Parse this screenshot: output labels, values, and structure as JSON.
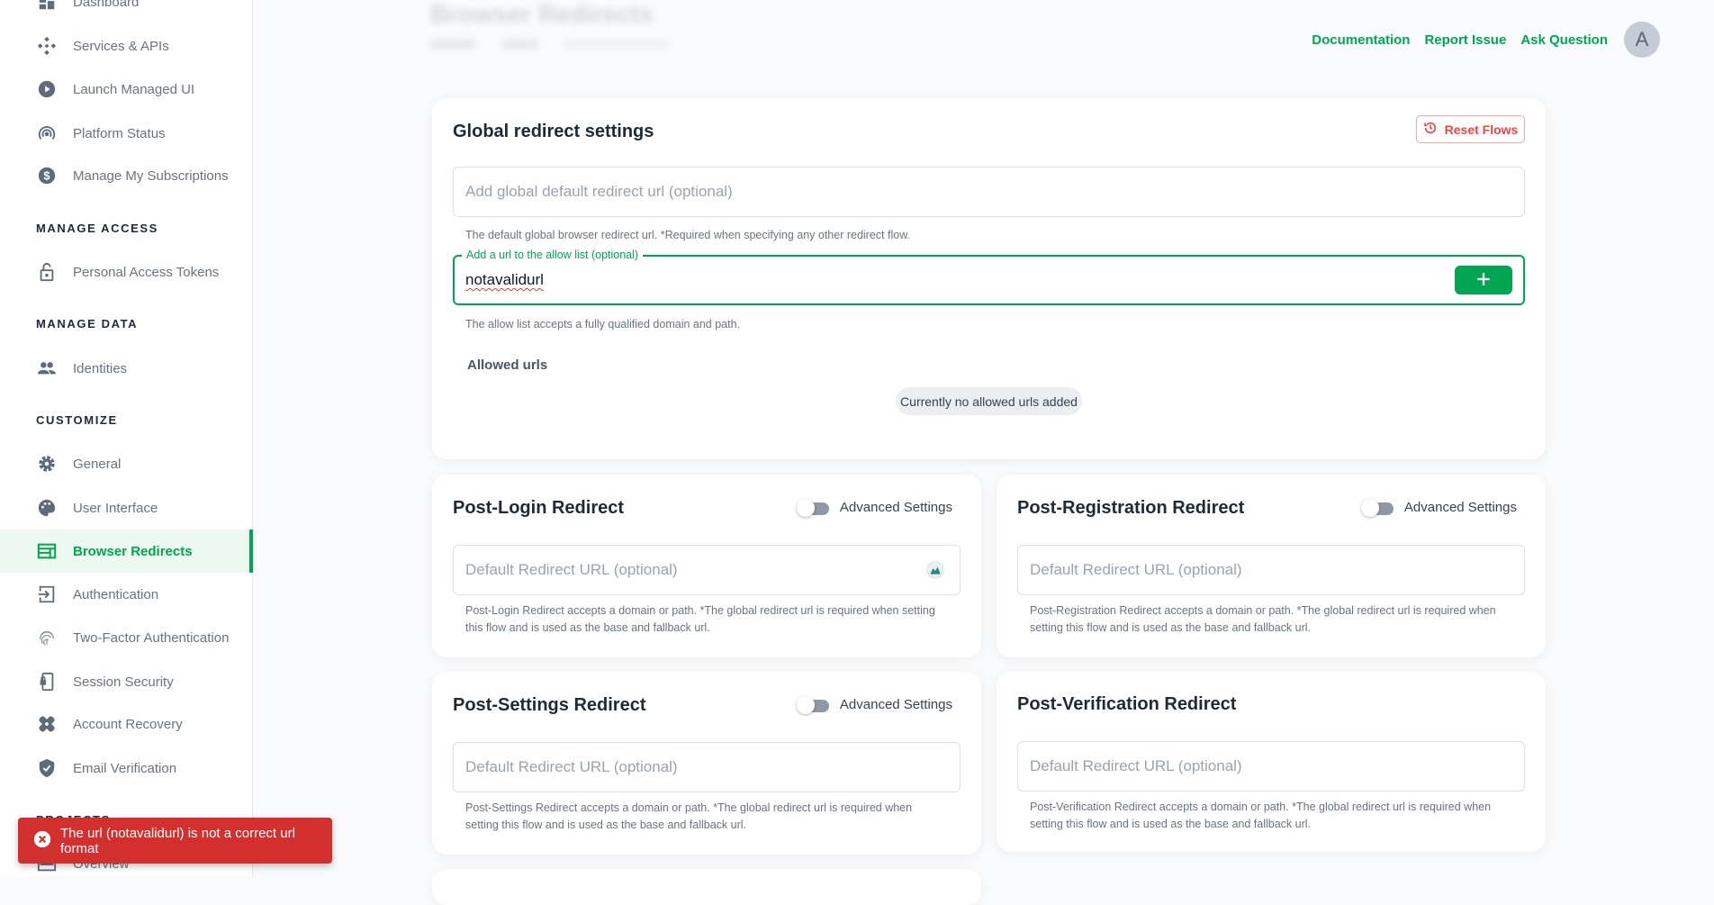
{
  "sidebar": {
    "items_top": [
      {
        "label": "Dashboard",
        "icon": "dashboard-icon"
      },
      {
        "label": "Services & APIs",
        "icon": "services-icon"
      },
      {
        "label": "Launch Managed UI",
        "icon": "play-circle-icon"
      },
      {
        "label": "Platform Status",
        "icon": "broadcast-icon"
      },
      {
        "label": "Manage My Subscriptions",
        "icon": "dollar-circle-icon"
      }
    ],
    "sections": [
      "MANAGE ACCESS",
      "MANAGE DATA",
      "CUSTOMIZE",
      "PROJECTS"
    ],
    "access_items": [
      {
        "label": "Personal Access Tokens",
        "icon": "lock-icon"
      }
    ],
    "data_items": [
      {
        "label": "Identities",
        "icon": "people-icon"
      }
    ],
    "customize_items": [
      {
        "label": "General",
        "icon": "gear-icon"
      },
      {
        "label": "User Interface",
        "icon": "palette-icon"
      },
      {
        "label": "Browser Redirects",
        "icon": "browser-icon",
        "active": true
      },
      {
        "label": "Authentication",
        "icon": "login-icon"
      },
      {
        "label": "Two-Factor Authentication",
        "icon": "fingerprint-icon"
      },
      {
        "label": "Session Security",
        "icon": "phone-lock-icon"
      },
      {
        "label": "Account Recovery",
        "icon": "bandage-icon"
      },
      {
        "label": "Email Verification",
        "icon": "shield-check-icon"
      }
    ],
    "project_items": [
      {
        "label": "Overview",
        "icon": "overview-icon"
      }
    ]
  },
  "header": {
    "title": "Browser Redirects",
    "links": [
      "Documentation",
      "Report Issue",
      "Ask Question"
    ],
    "avatar": "A",
    "accent": "#00a651"
  },
  "global": {
    "title": "Global redirect settings",
    "reset_label": "Reset Flows",
    "default_placeholder": "Add global default redirect url (optional)",
    "default_help": "The default global browser redirect url. *Required when specifying any other redirect flow.",
    "allow_label": "Add a url to the allow list (optional)",
    "allow_value": "notavalidurl",
    "allow_help": "The allow list accepts a fully qualified domain and path.",
    "allowed_title": "Allowed urls",
    "empty_chip": "Currently no allowed urls added"
  },
  "flows": [
    {
      "title": "Post-Login Redirect",
      "toggle": "Advanced Settings",
      "advanced_on": false,
      "placeholder": "Default Redirect URL (optional)",
      "help": "Post-Login Redirect accepts a domain or path. *The global redirect url is required when setting this flow and is used as the base and fallback url."
    },
    {
      "title": "Post-Registration Redirect",
      "toggle": "Advanced Settings",
      "advanced_on": false,
      "placeholder": "Default Redirect URL (optional)",
      "help": "Post-Registration Redirect accepts a domain or path. *The global redirect url is required when setting this flow and is used as the base and fallback url."
    },
    {
      "title": "Post-Settings Redirect",
      "toggle": "Advanced Settings",
      "advanced_on": false,
      "placeholder": "Default Redirect URL (optional)",
      "help": "Post-Settings Redirect accepts a domain or path. *The global redirect url is required when setting this flow and is used as the base and fallback url."
    },
    {
      "title": "Post-Verification Redirect",
      "placeholder": "Default Redirect URL (optional)",
      "help": "Post-Verification Redirect accepts a domain or path. *The global redirect url is required when setting this flow and is used as the base and fallback url."
    }
  ],
  "toast": {
    "message": "The url (notavalidurl) is not a correct url format",
    "color": "#d32f2f"
  }
}
